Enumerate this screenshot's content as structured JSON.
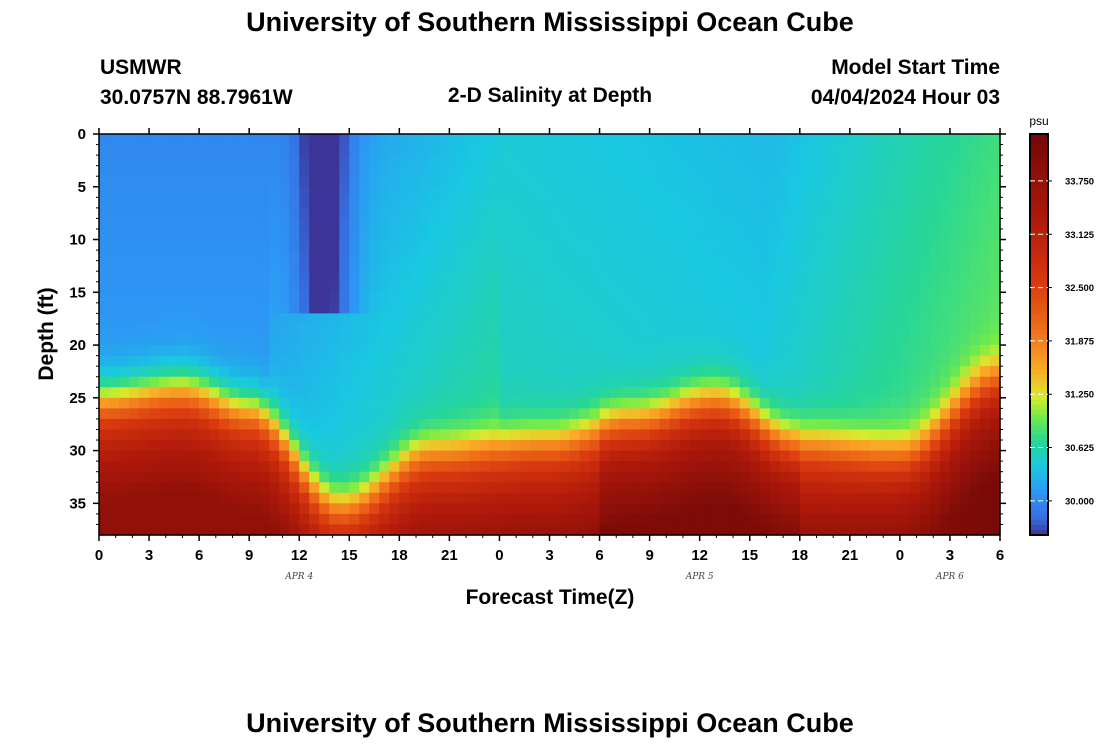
{
  "header": {
    "title": "University of Southern Mississippi Ocean Cube",
    "station": "USMWR",
    "coords": "30.0757N  88.7961W",
    "plot_title": "2-D Salinity at Depth",
    "model_label": "Model Start Time",
    "model_time": "04/04/2024 Hour 03"
  },
  "footer": {
    "title": "University of Southern Mississippi Ocean Cube"
  },
  "chart_data": {
    "type": "heatmap",
    "title": "2-D Salinity at Depth",
    "xlabel": "Forecast Time(Z)",
    "ylabel": "Depth (ft)",
    "x_tick_labels": [
      "0",
      "3",
      "6",
      "9",
      "12",
      "15",
      "18",
      "21",
      "0",
      "3",
      "6",
      "9",
      "12",
      "15",
      "18",
      "21",
      "0",
      "3",
      "6"
    ],
    "x_range_hours": [
      0,
      54
    ],
    "date_labels": [
      {
        "text": "APR 4",
        "hour": 12
      },
      {
        "text": "APR 5",
        "hour": 36
      },
      {
        "text": "APR 6",
        "hour": 51
      }
    ],
    "y_ticks": [
      0,
      5,
      10,
      15,
      20,
      25,
      30,
      35
    ],
    "y_range": [
      0,
      38
    ],
    "y_inverted": true,
    "colorbar": {
      "unit": "psu",
      "ticks": [
        "30.000",
        "30.625",
        "31.250",
        "31.875",
        "32.500",
        "33.125",
        "33.750"
      ],
      "tick_values": [
        30.0,
        30.625,
        31.25,
        31.875,
        32.5,
        33.125,
        33.75
      ],
      "range": [
        29.6,
        34.3
      ]
    },
    "description_points": {
      "surface_fresh_minimum": {
        "hour": 13.5,
        "depth_top": 0,
        "depth_bottom": 16,
        "salinity": 29.6
      },
      "halocline_depth_by_hour": [
        {
          "hour": 0,
          "depth": 25
        },
        {
          "hour": 5,
          "depth": 24
        },
        {
          "hour": 9,
          "depth": 26
        },
        {
          "hour": 14.5,
          "depth": 35
        },
        {
          "hour": 20,
          "depth": 30
        },
        {
          "hour": 27,
          "depth": 29
        },
        {
          "hour": 32,
          "depth": 27
        },
        {
          "hour": 37,
          "depth": 25
        },
        {
          "hour": 42,
          "depth": 29
        },
        {
          "hour": 48,
          "depth": 30
        },
        {
          "hour": 54,
          "depth": 23
        }
      ]
    }
  }
}
